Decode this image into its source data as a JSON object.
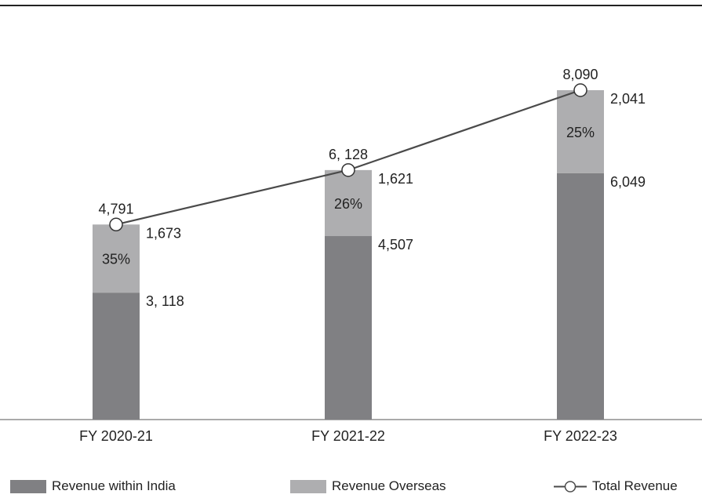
{
  "chart_data": {
    "type": "bar",
    "stacked": true,
    "categories": [
      "FY 2020-21",
      "FY 2021-22",
      "FY 2022-23"
    ],
    "series": [
      {
        "name": "Revenue within India",
        "values": [
          3118,
          4507,
          6049
        ],
        "labels": [
          "3, 118",
          "4,507",
          "6,049"
        ],
        "color": "#808083"
      },
      {
        "name": "Revenue Overseas",
        "values": [
          1673,
          1621,
          2041
        ],
        "labels": [
          "1,673",
          "1,621",
          "2,041"
        ],
        "color": "#aeaeb0"
      }
    ],
    "total": {
      "name": "Total Revenue",
      "values": [
        4791,
        6128,
        8090
      ],
      "labels": [
        "4,791",
        "6, 128",
        "8,090"
      ],
      "color": "#4a4a4a"
    },
    "overseas_share_labels": [
      "35%",
      "26%",
      "25%"
    ],
    "ylim": [
      0,
      8400
    ],
    "grid": false,
    "legend_position": "bottom"
  },
  "legend": {
    "india": "Revenue within India",
    "overseas": "Revenue Overseas",
    "total": "Total Revenue"
  }
}
